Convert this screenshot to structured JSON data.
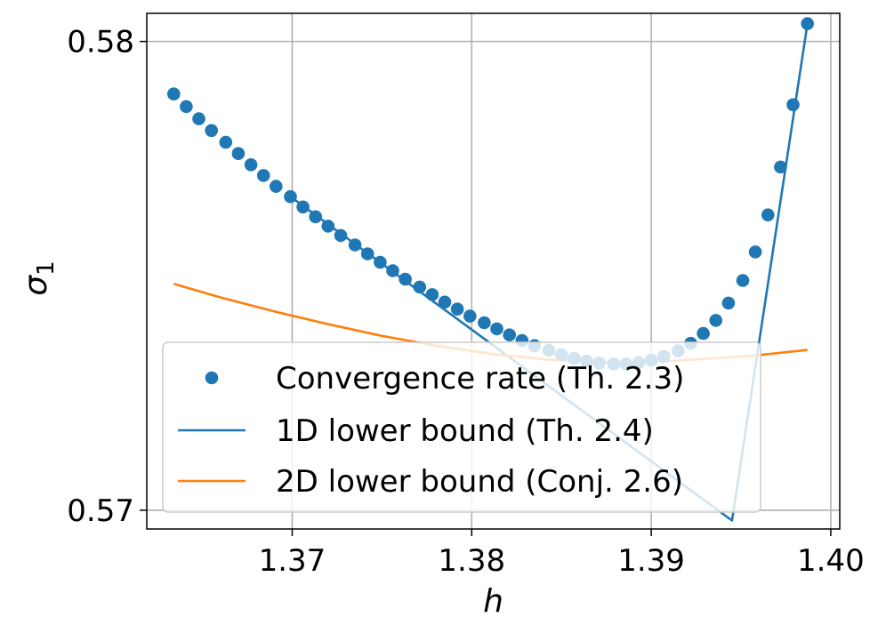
{
  "chart_data": {
    "type": "scatter+line",
    "xlabel": "h",
    "ylabel": "σ",
    "ylabel_subscript": "1",
    "xlim": [
      1.3619,
      1.4005
    ],
    "ylim": [
      0.5696,
      0.5806
    ],
    "xticks": [
      1.37,
      1.38,
      1.39,
      1.4
    ],
    "xtick_labels": [
      "1.37",
      "1.38",
      "1.39",
      "1.40"
    ],
    "yticks": [
      0.57,
      0.58
    ],
    "ytick_labels": [
      "0.57",
      "0.58"
    ],
    "grid": true,
    "legend_position": "lower-left",
    "colors": {
      "blue": "#1f77b4",
      "orange": "#ff7f0e"
    },
    "series": [
      {
        "name": "Convergence rate (Th. 2.3)",
        "kind": "scatter",
        "color": "#1f77b4",
        "x": [
          1.3634,
          1.3641,
          1.3648,
          1.3655,
          1.3663,
          1.367,
          1.3677,
          1.3684,
          1.3691,
          1.3699,
          1.3706,
          1.3713,
          1.372,
          1.3727,
          1.3735,
          1.3742,
          1.3749,
          1.3756,
          1.3763,
          1.3771,
          1.3778,
          1.3785,
          1.3792,
          1.3799,
          1.3807,
          1.3814,
          1.3821,
          1.3828,
          1.3835,
          1.3843,
          1.385,
          1.3857,
          1.3864,
          1.3871,
          1.3879,
          1.3886,
          1.3893,
          1.39,
          1.3907,
          1.3915,
          1.3922,
          1.3929,
          1.3936,
          1.3943,
          1.3951,
          1.3958,
          1.3965,
          1.3972,
          1.3979,
          1.3987
        ],
        "y": [
          0.57888,
          0.57861,
          0.57835,
          0.5781,
          0.57785,
          0.57761,
          0.57737,
          0.57714,
          0.57691,
          0.57669,
          0.57647,
          0.57626,
          0.57606,
          0.57586,
          0.57566,
          0.57547,
          0.57529,
          0.57511,
          0.57493,
          0.57476,
          0.5746,
          0.57444,
          0.57429,
          0.57414,
          0.574,
          0.57387,
          0.57374,
          0.57362,
          0.57351,
          0.57341,
          0.57332,
          0.57324,
          0.57318,
          0.57314,
          0.57312,
          0.57312,
          0.57315,
          0.5732,
          0.57328,
          0.5734,
          0.57356,
          0.57377,
          0.57405,
          0.57442,
          0.5749,
          0.57551,
          0.5763,
          0.57732,
          0.57865,
          0.58038
        ]
      },
      {
        "name": "1D lower bound (Th. 2.4)",
        "kind": "line",
        "color": "#1f77b4",
        "x": [
          1.3699,
          1.3945,
          1.3987
        ],
        "y": [
          0.57669,
          0.56978,
          0.58038
        ]
      },
      {
        "name": "2D lower bound (Conj. 2.6)",
        "kind": "line",
        "color": "#ff7f0e",
        "x": [
          1.3634,
          1.366,
          1.369,
          1.372,
          1.375,
          1.378,
          1.381,
          1.384,
          1.387,
          1.389,
          1.391,
          1.394,
          1.396,
          1.3987
        ],
        "y": [
          0.57483,
          0.57454,
          0.57424,
          0.57397,
          0.57372,
          0.57351,
          0.57334,
          0.57322,
          0.57316,
          0.57316,
          0.57318,
          0.57325,
          0.57331,
          0.57342
        ]
      }
    ]
  }
}
